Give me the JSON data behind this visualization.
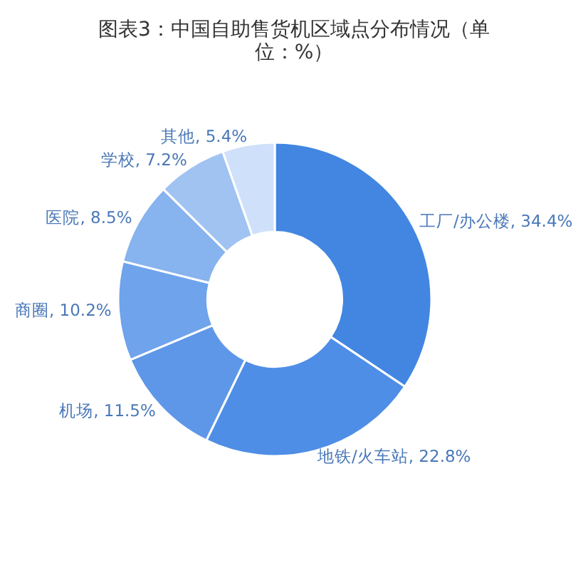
{
  "chart_data": {
    "type": "donut",
    "title": "图表3：中国自助售货机区域点分布情况（单位：%）",
    "categories": [
      "工厂/办公楼",
      "地铁/火车站",
      "机场",
      "商圈",
      "医院",
      "学校",
      "其他"
    ],
    "values": [
      34.4,
      22.8,
      11.5,
      10.2,
      8.5,
      7.2,
      5.4
    ],
    "value_labels": [
      "34.4%",
      "22.8%",
      "11.5%",
      "10.2%",
      "8.5%",
      "7.2%",
      "5.4%"
    ],
    "colors": [
      "#4286e2",
      "#4f8ee6",
      "#5e97e8",
      "#6fa3eb",
      "#87b3ee",
      "#a0c3f2",
      "#cfe1fa"
    ]
  }
}
